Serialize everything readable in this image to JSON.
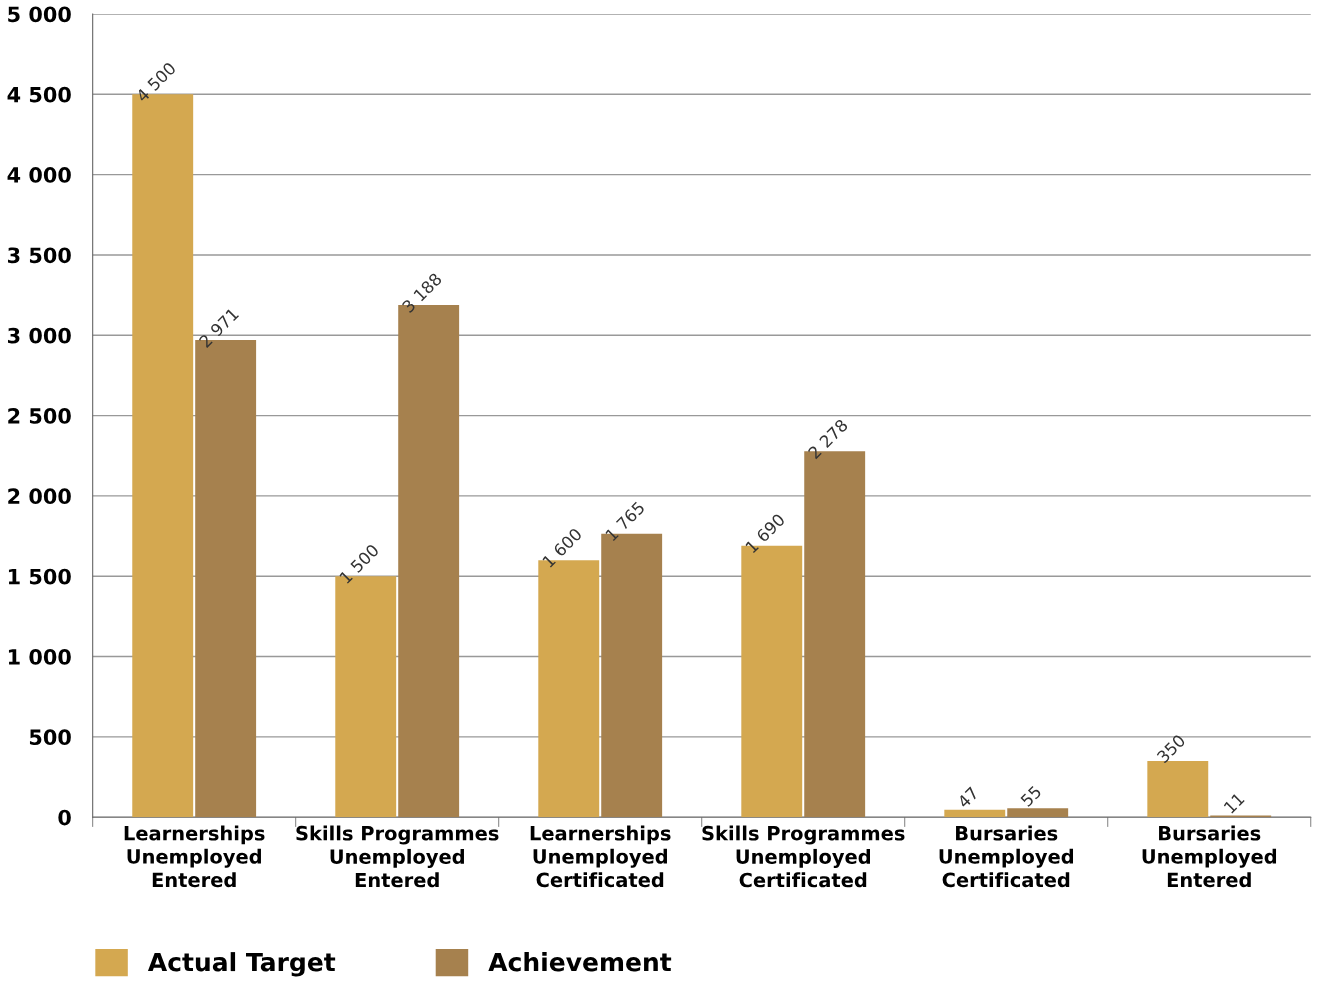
{
  "chart_data": {
    "type": "bar",
    "categories": [
      "Learnerships\nUnemployed\nEntered",
      "Skills Programmes\nUnemployed\nEntered",
      "Learnerships\nUnemployed\nCertificated",
      "Skills Programmes\nUnemployed\nCertificated",
      "Bursaries\nUnemployed\nCertificated",
      "Bursaries\nUnemployed\nEntered"
    ],
    "series": [
      {
        "name": "Actual Target",
        "color": "#d4a850",
        "values": [
          4500,
          1500,
          1600,
          1690,
          47,
          350
        ],
        "value_labels": [
          "4 500",
          "1 500",
          "1 600",
          "1 690",
          "47",
          "350"
        ]
      },
      {
        "name": "Achievement",
        "color": "#a6814e",
        "values": [
          2971,
          3188,
          1765,
          2278,
          55,
          11
        ],
        "value_labels": [
          "2 971",
          "3 188",
          "1 765",
          "2 278",
          "55",
          "11"
        ]
      }
    ],
    "ylim": [
      0,
      5000
    ],
    "yticks": [
      {
        "value": 0,
        "label": "0"
      },
      {
        "value": 500,
        "label": "500"
      },
      {
        "value": 1000,
        "label": "1 000"
      },
      {
        "value": 1500,
        "label": "1 500"
      },
      {
        "value": 2000,
        "label": "2 000"
      },
      {
        "value": 2500,
        "label": "2 500"
      },
      {
        "value": 3000,
        "label": "3 000"
      },
      {
        "value": 3500,
        "label": "3 500"
      },
      {
        "value": 4000,
        "label": "4 000"
      },
      {
        "value": 4500,
        "label": "4 500"
      },
      {
        "value": 5000,
        "label": "5 000"
      }
    ],
    "grid": "y",
    "legend": "bottom left"
  }
}
